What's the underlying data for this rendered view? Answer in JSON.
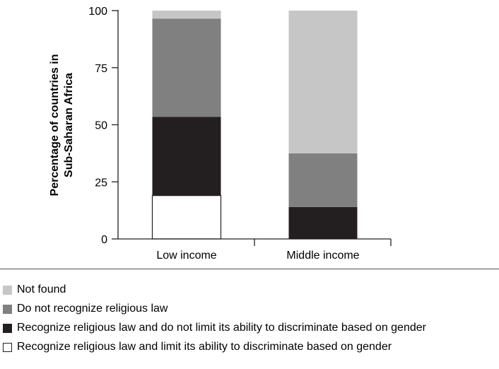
{
  "chart_data": {
    "type": "bar",
    "stacked": true,
    "categories": [
      "Low income",
      "Middle income"
    ],
    "ylabel": "Percentage of countries in Sub-Saharan Africa",
    "ylabel_lines": [
      "Percentage of countries in",
      "Sub-Saharan Africa"
    ],
    "yticks": [
      0,
      25,
      50,
      75,
      100
    ],
    "ylim": [
      0,
      100
    ],
    "grid": false,
    "series": [
      {
        "name": "Recognize religious law and limit its ability to discriminate based on gender",
        "color": "#ffffff",
        "values": [
          19,
          0
        ]
      },
      {
        "name": "Recognize religious law and do not limit its ability to discriminate based on gender",
        "color": "#231f20",
        "values": [
          34.5,
          14
        ]
      },
      {
        "name": "Do not recognize religious law",
        "color": "#808080",
        "values": [
          43,
          23.5
        ]
      },
      {
        "name": "Not found",
        "color": "#c6c6c6",
        "values": [
          3.5,
          62.5
        ]
      }
    ],
    "legend": {
      "placement": "bottom",
      "order": [
        3,
        2,
        1,
        0
      ]
    }
  }
}
